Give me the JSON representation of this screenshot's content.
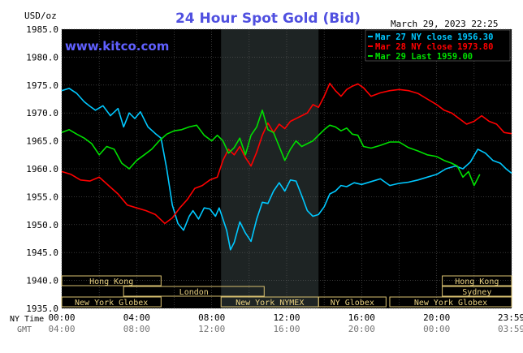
{
  "chart_data": {
    "type": "line",
    "title": "24 Hour Spot Gold (Bid)",
    "timestamp": "March 29, 2023 22:25",
    "watermark": "www.kitco.com",
    "ylabel": "USD/oz",
    "ylim": [
      1935,
      1985
    ],
    "yticks": [
      "1985.0",
      "1980.0",
      "1975.0",
      "1970.0",
      "1965.0",
      "1960.0",
      "1955.0",
      "1950.0",
      "1945.0",
      "1940.0",
      "1935.0"
    ],
    "xlim": [
      0,
      24
    ],
    "row_labels": {
      "ny": "NY Time",
      "gmt": "GMT"
    },
    "ny_ticks": [
      {
        "t": 0,
        "label": "00:00"
      },
      {
        "t": 4,
        "label": "04:00"
      },
      {
        "t": 8,
        "label": "08:00"
      },
      {
        "t": 12,
        "label": "12:00"
      },
      {
        "t": 16,
        "label": "16:00"
      },
      {
        "t": 20,
        "label": "20:00"
      },
      {
        "t": 23.98,
        "label": "23:59"
      }
    ],
    "gmt_ticks": [
      {
        "t": 0,
        "label": "04:00"
      },
      {
        "t": 4,
        "label": "08:00"
      },
      {
        "t": 8,
        "label": "12:00"
      },
      {
        "t": 12,
        "label": "16:00"
      },
      {
        "t": 16,
        "label": "20:00"
      },
      {
        "t": 20,
        "label": "00:00"
      },
      {
        "t": 23.98,
        "label": "03:59"
      }
    ],
    "shaded_range": [
      8.5,
      13.7
    ],
    "legend": [
      {
        "label": "Mar 27 NY close 1956.30",
        "color": "#00c8ff"
      },
      {
        "label": "Mar 28 NY close 1973.80",
        "color": "#ff0000"
      },
      {
        "label": "Mar 29 Last 1959.00",
        "color": "#00e000"
      }
    ],
    "sessions": [
      {
        "label": "Hong Kong",
        "start": 0,
        "end": 5.3,
        "row": 0
      },
      {
        "label": "Sydney",
        "start": 20.3,
        "end": 24,
        "row": 1
      },
      {
        "label": "Hong Kong",
        "start": 20.3,
        "end": 24,
        "row": 0
      },
      {
        "label": "London",
        "start": 3.3,
        "end": 10.8,
        "row": 1
      },
      {
        "label": "New York Globex",
        "start": 0,
        "end": 5.3,
        "row": 2
      },
      {
        "label": "New York NYMEX",
        "start": 8.5,
        "end": 13.7,
        "row": 2
      },
      {
        "label": "NY Globex",
        "start": 13.7,
        "end": 17.3,
        "row": 2
      },
      {
        "label": "New York Globex",
        "start": 17.5,
        "end": 24,
        "row": 2
      }
    ],
    "series": [
      {
        "name": "Mar 27 NY close 1956.30",
        "color": "#00c8ff",
        "x": [
          0,
          0.4,
          0.8,
          1.2,
          1.5,
          1.8,
          2.2,
          2.6,
          3.0,
          3.3,
          3.6,
          3.9,
          4.2,
          4.6,
          5.0,
          5.3,
          5.6,
          5.9,
          6.2,
          6.5,
          6.8,
          7.0,
          7.3,
          7.6,
          7.9,
          8.2,
          8.4,
          8.6,
          8.8,
          9.0,
          9.2,
          9.5,
          9.8,
          10.1,
          10.4,
          10.7,
          11.0,
          11.3,
          11.6,
          11.9,
          12.2,
          12.5,
          12.8,
          13.1,
          13.4,
          13.7,
          14.0,
          14.3,
          14.6,
          14.9,
          15.2,
          15.6,
          16.0,
          16.5,
          17.0,
          17.5,
          18.0,
          18.5,
          19.0,
          19.5,
          20.0,
          20.5,
          21.0,
          21.4,
          21.8,
          22.2,
          22.6,
          23.0,
          23.4,
          23.7,
          24.0
        ],
        "y": [
          1974,
          1974.4,
          1973.5,
          1972,
          1971.2,
          1970.5,
          1971.3,
          1969.5,
          1970.8,
          1967.5,
          1970,
          1969,
          1970.2,
          1967.5,
          1966.3,
          1965.5,
          1960,
          1953.5,
          1950.2,
          1949,
          1951.5,
          1952.5,
          1951,
          1953,
          1952.8,
          1951.5,
          1953,
          1951,
          1949,
          1945.5,
          1946.8,
          1950.5,
          1948.5,
          1947,
          1951,
          1954,
          1953.8,
          1956,
          1957.5,
          1956,
          1958,
          1957.8,
          1955.2,
          1952.5,
          1951.5,
          1951.8,
          1953.2,
          1955.5,
          1956,
          1957,
          1956.8,
          1957.5,
          1957.2,
          1957.7,
          1958.2,
          1957,
          1957.4,
          1957.6,
          1958,
          1958.5,
          1959,
          1960,
          1960.5,
          1960,
          1961.2,
          1963.5,
          1962.8,
          1961.5,
          1961,
          1960,
          1959.2
        ]
      },
      {
        "name": "Mar 28 NY close 1973.80",
        "color": "#ff0000",
        "x": [
          0,
          0.5,
          1.0,
          1.5,
          2.0,
          2.5,
          3.0,
          3.5,
          4.0,
          4.5,
          5.0,
          5.5,
          5.9,
          6.3,
          6.7,
          7.1,
          7.5,
          7.9,
          8.3,
          8.6,
          8.9,
          9.2,
          9.5,
          9.8,
          10.1,
          10.4,
          10.7,
          11.0,
          11.3,
          11.6,
          11.9,
          12.2,
          12.5,
          12.8,
          13.1,
          13.4,
          13.7,
          14.0,
          14.3,
          14.6,
          14.9,
          15.2,
          15.5,
          15.8,
          16.1,
          16.5,
          17.0,
          17.5,
          18.0,
          18.5,
          19.0,
          19.5,
          20.0,
          20.4,
          20.8,
          21.2,
          21.6,
          22.0,
          22.4,
          22.8,
          23.2,
          23.6,
          24.0
        ],
        "y": [
          1959.5,
          1959,
          1958,
          1957.8,
          1958.5,
          1957,
          1955.5,
          1953.5,
          1953,
          1952.5,
          1951.8,
          1950.2,
          1951.2,
          1953,
          1954.5,
          1956.5,
          1957,
          1958,
          1958.5,
          1961.5,
          1963.5,
          1962.5,
          1964,
          1962,
          1960.5,
          1963,
          1966,
          1968.2,
          1966.5,
          1968,
          1967.2,
          1968.5,
          1969,
          1969.5,
          1970,
          1971.5,
          1971,
          1973,
          1975.3,
          1974,
          1973,
          1974.2,
          1974.8,
          1975.2,
          1974.5,
          1973,
          1973.6,
          1974,
          1974.2,
          1974,
          1973.5,
          1972.5,
          1971.5,
          1970.5,
          1970,
          1969,
          1968,
          1968.5,
          1969.5,
          1968.5,
          1968,
          1966.5,
          1966.3
        ]
      },
      {
        "name": "Mar 29 Last 1959.00",
        "color": "#00e000",
        "x": [
          0,
          0.4,
          0.8,
          1.2,
          1.6,
          2.0,
          2.4,
          2.8,
          3.2,
          3.6,
          4.0,
          4.4,
          4.8,
          5.2,
          5.6,
          6.0,
          6.4,
          6.8,
          7.2,
          7.6,
          8.0,
          8.3,
          8.6,
          8.9,
          9.2,
          9.5,
          9.8,
          10.1,
          10.4,
          10.7,
          11.0,
          11.3,
          11.6,
          11.9,
          12.2,
          12.5,
          12.8,
          13.1,
          13.4,
          13.7,
          14.0,
          14.3,
          14.6,
          14.9,
          15.2,
          15.5,
          15.8,
          16.1,
          16.5,
          17.0,
          17.5,
          18.0,
          18.5,
          19.0,
          19.5,
          20.0,
          20.4,
          20.8,
          21.1,
          21.4,
          21.7,
          22.0,
          22.3
        ],
        "y": [
          1966.5,
          1967,
          1966.2,
          1965.5,
          1964.5,
          1962.5,
          1964,
          1963.5,
          1961,
          1960,
          1961.5,
          1962.5,
          1963.5,
          1965,
          1966.2,
          1966.8,
          1967,
          1967.5,
          1967.8,
          1966,
          1965,
          1966,
          1965,
          1962.8,
          1963.8,
          1965.5,
          1962.5,
          1966,
          1967.5,
          1970.5,
          1967,
          1966.5,
          1964,
          1961.5,
          1963.5,
          1965,
          1964,
          1964.5,
          1965,
          1966,
          1967,
          1967.8,
          1967.5,
          1966.8,
          1967.3,
          1966.2,
          1966,
          1964,
          1963.7,
          1964.2,
          1964.8,
          1964.8,
          1963.8,
          1963.2,
          1962.5,
          1962.2,
          1961.5,
          1961,
          1960.5,
          1958.5,
          1959.5,
          1957,
          1959
        ]
      }
    ]
  }
}
